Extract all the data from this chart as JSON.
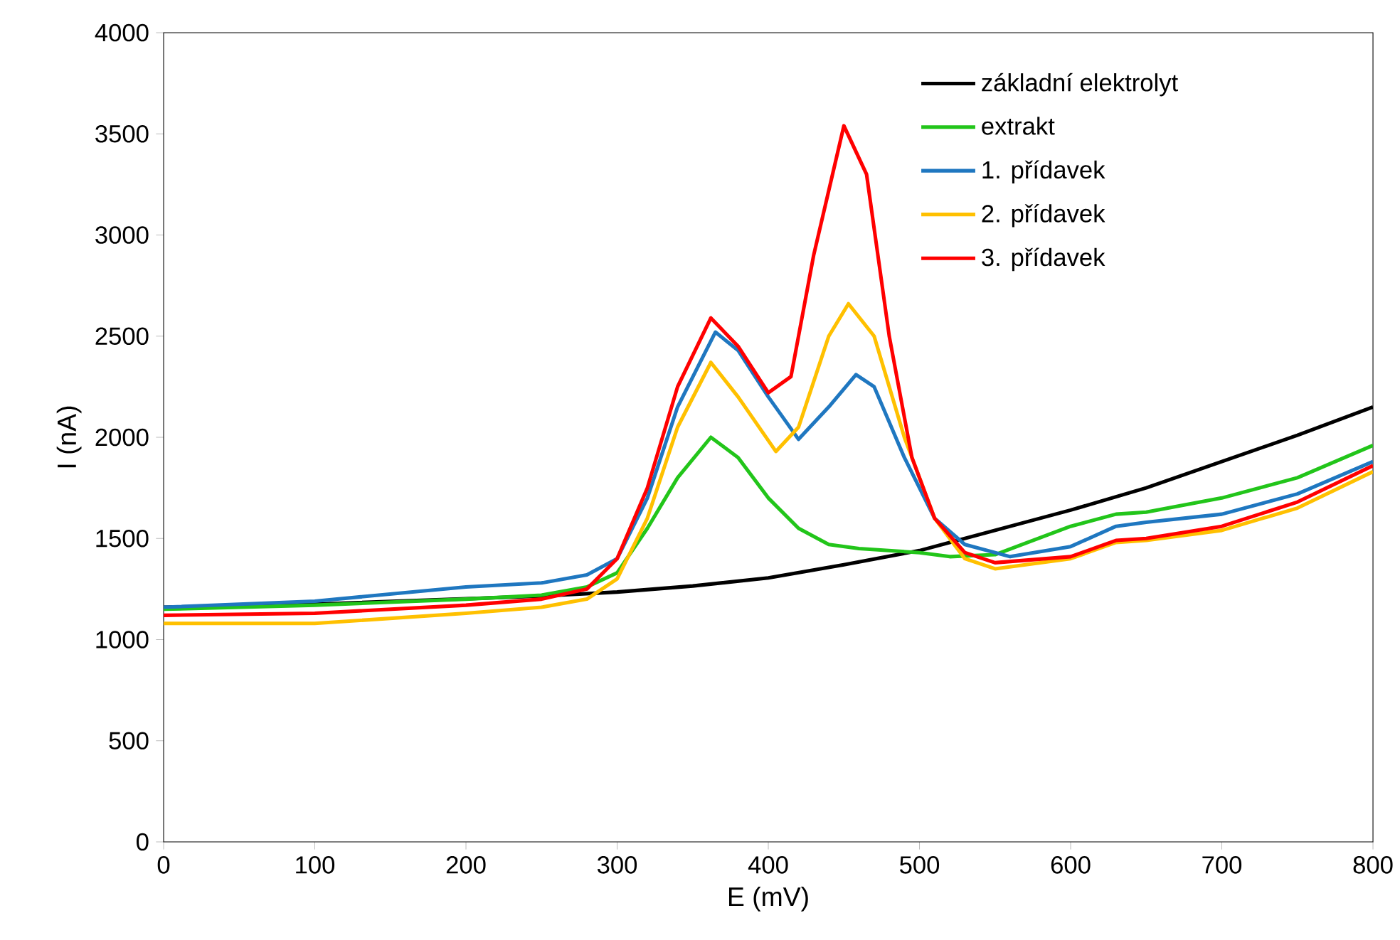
{
  "chart_data": {
    "type": "line",
    "xlabel": "E (mV)",
    "ylabel": "I (nA)",
    "xlim": [
      0,
      800
    ],
    "ylim": [
      0,
      4000
    ],
    "xticks": [
      0,
      100,
      200,
      300,
      400,
      500,
      600,
      700,
      800
    ],
    "yticks": [
      0,
      500,
      1000,
      1500,
      2000,
      2500,
      3000,
      3500,
      4000
    ],
    "grid": false,
    "legend": "top right",
    "marker": "none",
    "line_style": "solid",
    "series": [
      {
        "name": "základní elektrolyt",
        "color": "#000000",
        "x": [
          0,
          100,
          200,
          250,
          300,
          350,
          400,
          450,
          500,
          550,
          600,
          650,
          700,
          750,
          800
        ],
        "values": [
          1160,
          1175,
          null,
          1215,
          1235,
          1265,
          1305,
          1370,
          1440,
          1540,
          1640,
          1750,
          1880,
          2010,
          2150
        ]
      },
      {
        "name": "extrakt",
        "color": "#22c51a",
        "x": [
          0,
          100,
          200,
          250,
          280,
          300,
          320,
          340,
          362,
          380,
          400,
          420,
          440,
          460,
          480,
          500,
          520,
          550,
          600,
          630,
          650,
          700,
          750,
          800
        ],
        "values": [
          1150,
          1170,
          1200,
          1220,
          1260,
          1330,
          1550,
          1800,
          2000,
          1900,
          1700,
          1550,
          1470,
          1450,
          1440,
          1430,
          1410,
          1420,
          1560,
          1620,
          1630,
          1700,
          1800,
          1960
        ]
      },
      {
        "name": "1. přídavek",
        "color": "#1f77c0",
        "x": [
          0,
          100,
          200,
          250,
          280,
          300,
          320,
          340,
          365,
          380,
          400,
          420,
          440,
          458,
          470,
          490,
          510,
          530,
          560,
          600,
          630,
          650,
          700,
          750,
          800
        ],
        "values": [
          1160,
          1190,
          1260,
          1280,
          1320,
          1400,
          1700,
          2150,
          2520,
          2430,
          2200,
          1990,
          2150,
          2310,
          2250,
          1900,
          1600,
          1470,
          1410,
          1460,
          1560,
          1580,
          1620,
          1720,
          1880
        ]
      },
      {
        "name": "2. přídavek",
        "color": "#ffc000",
        "x": [
          0,
          100,
          200,
          250,
          280,
          300,
          320,
          340,
          362,
          380,
          405,
          420,
          440,
          453,
          470,
          490,
          510,
          530,
          550,
          600,
          630,
          650,
          700,
          750,
          800
        ],
        "values": [
          1080,
          1080,
          1130,
          1160,
          1200,
          1300,
          1600,
          2050,
          2370,
          2200,
          1930,
          2050,
          2500,
          2660,
          2500,
          2000,
          1600,
          1400,
          1350,
          1400,
          1480,
          1490,
          1540,
          1650,
          1830
        ]
      },
      {
        "name": "3. přídavek",
        "color": "#ff0000",
        "x": [
          0,
          100,
          200,
          250,
          280,
          300,
          320,
          340,
          362,
          380,
          400,
          415,
          430,
          450,
          465,
          480,
          495,
          510,
          530,
          550,
          600,
          630,
          650,
          700,
          750,
          800
        ],
        "values": [
          1120,
          1130,
          1170,
          1200,
          1250,
          1400,
          1750,
          2250,
          2590,
          2450,
          2220,
          2300,
          2900,
          3540,
          3300,
          2500,
          1900,
          1600,
          1430,
          1380,
          1410,
          1490,
          1500,
          1560,
          1680,
          1860
        ]
      }
    ]
  }
}
